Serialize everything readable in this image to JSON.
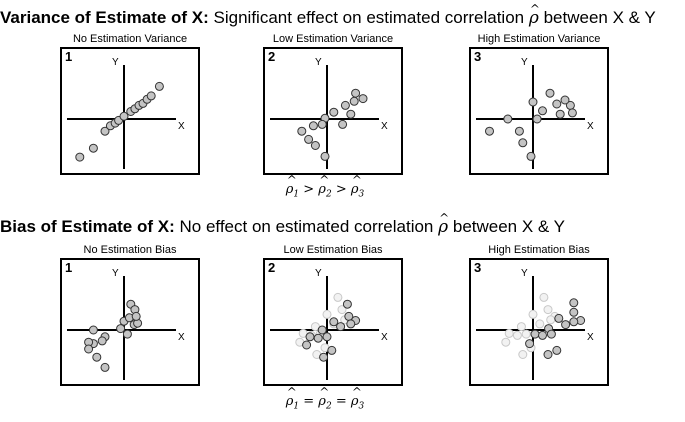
{
  "section_top": {
    "bold": "Variance of Estimate of X:",
    "text": "Significant effect on estimated correlation",
    "rho": "ρ",
    "tail": "between X & Y",
    "formula": [
      {
        "sym": "ρ",
        "sub": "1"
      },
      {
        "op": ">"
      },
      {
        "sym": "ρ",
        "sub": "2"
      },
      {
        "op": ">"
      },
      {
        "sym": "ρ",
        "sub": "3"
      }
    ],
    "panels": [
      {
        "title": "No Estimation Variance",
        "number": "1",
        "y_label": "Y",
        "x_label": "X",
        "points": [
          [
            -0.65,
            -0.56
          ],
          [
            -0.45,
            -0.43
          ],
          [
            -0.28,
            -0.18
          ],
          [
            -0.2,
            -0.1
          ],
          [
            -0.13,
            -0.06
          ],
          [
            -0.08,
            -0.02
          ],
          [
            0.0,
            0.04
          ],
          [
            0.1,
            0.11
          ],
          [
            0.16,
            0.15
          ],
          [
            0.22,
            0.2
          ],
          [
            0.28,
            0.23
          ],
          [
            0.34,
            0.29
          ],
          [
            0.4,
            0.34
          ],
          [
            0.52,
            0.48
          ]
        ],
        "faded": []
      },
      {
        "title": "Low Estimation Variance",
        "number": "2",
        "y_label": "Y",
        "x_label": "X",
        "points": [
          [
            -0.37,
            -0.18
          ],
          [
            -0.2,
            -0.1
          ],
          [
            -0.03,
            0.01
          ],
          [
            0.1,
            0.1
          ],
          [
            0.27,
            0.2
          ],
          [
            0.4,
            0.26
          ],
          [
            0.53,
            0.3
          ],
          [
            -0.27,
            -0.3
          ],
          [
            -0.07,
            -0.08
          ],
          [
            0.23,
            -0.08
          ],
          [
            0.35,
            0.07
          ],
          [
            0.42,
            0.38
          ],
          [
            -0.03,
            -0.55
          ],
          [
            -0.17,
            -0.39
          ]
        ],
        "faded": []
      },
      {
        "title": "High Estimation Variance",
        "number": "3",
        "y_label": "Y",
        "x_label": "X",
        "points": [
          [
            -0.64,
            -0.18
          ],
          [
            -0.37,
            0.0
          ],
          [
            -0.2,
            -0.18
          ],
          [
            0.0,
            0.25
          ],
          [
            0.06,
            0.0
          ],
          [
            0.25,
            0.38
          ],
          [
            0.4,
            0.07
          ],
          [
            0.35,
            0.22
          ],
          [
            0.55,
            0.2
          ],
          [
            -0.15,
            -0.35
          ],
          [
            0.14,
            0.12
          ],
          [
            0.58,
            0.09
          ],
          [
            -0.03,
            -0.55
          ],
          [
            0.47,
            0.28
          ]
        ],
        "faded": []
      }
    ]
  },
  "section_bottom": {
    "bold": "Bias of Estimate of X:",
    "text": "No effect on estimated correlation",
    "rho": "ρ",
    "tail": "between X & Y",
    "formula": [
      {
        "sym": "ρ",
        "sub": "1"
      },
      {
        "op": "="
      },
      {
        "sym": "ρ",
        "sub": "2"
      },
      {
        "op": "="
      },
      {
        "sym": "ρ",
        "sub": "3"
      }
    ],
    "panels": [
      {
        "title": "No Estimation Bias",
        "number": "1",
        "y_label": "Y",
        "x_label": "X",
        "points": [
          [
            -0.45,
            -0.2
          ],
          [
            -0.28,
            -0.1
          ],
          [
            -0.45,
            0.0
          ],
          [
            -0.52,
            -0.18
          ],
          [
            -0.32,
            -0.16
          ],
          [
            -0.52,
            -0.28
          ],
          [
            -0.4,
            -0.4
          ],
          [
            -0.28,
            -0.55
          ],
          [
            -0.05,
            0.02
          ],
          [
            0.0,
            0.13
          ],
          [
            0.05,
            -0.06
          ],
          [
            0.08,
            0.18
          ],
          [
            0.1,
            0.38
          ],
          [
            0.16,
            0.3
          ],
          [
            0.15,
            0.08
          ],
          [
            0.2,
            0.1
          ],
          [
            0.18,
            0.2
          ]
        ],
        "faded": []
      },
      {
        "title": "Low Estimation Bias",
        "number": "2",
        "y_label": "Y",
        "x_label": "X",
        "points": [
          [
            0.3,
            0.38
          ],
          [
            0.32,
            0.2
          ],
          [
            0.1,
            0.12
          ],
          [
            0.42,
            0.14
          ],
          [
            0.35,
            0.09
          ],
          [
            0.2,
            0.05
          ],
          [
            -0.07,
            0.0
          ],
          [
            -0.25,
            -0.1
          ],
          [
            -0.13,
            -0.12
          ],
          [
            -0.3,
            -0.22
          ],
          [
            0.0,
            -0.1
          ],
          [
            -0.05,
            -0.4
          ],
          [
            0.07,
            -0.3
          ]
        ],
        "faded": [
          [
            0.16,
            0.48
          ],
          [
            0.22,
            0.3
          ],
          [
            0.0,
            0.23
          ],
          [
            0.32,
            0.2
          ],
          [
            0.26,
            0.15
          ],
          [
            0.1,
            0.09
          ],
          [
            -0.17,
            0.05
          ],
          [
            -0.35,
            -0.05
          ],
          [
            -0.23,
            -0.08
          ],
          [
            -0.4,
            -0.18
          ],
          [
            -0.1,
            -0.06
          ],
          [
            -0.15,
            -0.36
          ],
          [
            -0.03,
            -0.26
          ]
        ]
      },
      {
        "title": "High Estimation Bias",
        "number": "3",
        "y_label": "Y",
        "x_label": "X",
        "points": [
          [
            0.6,
            0.4
          ],
          [
            0.6,
            0.26
          ],
          [
            0.38,
            0.17
          ],
          [
            0.7,
            0.14
          ],
          [
            0.6,
            0.12
          ],
          [
            0.48,
            0.08
          ],
          [
            0.23,
            0.02
          ],
          [
            0.03,
            -0.06
          ],
          [
            0.14,
            -0.08
          ],
          [
            -0.05,
            -0.2
          ],
          [
            0.27,
            -0.06
          ],
          [
            0.22,
            -0.36
          ],
          [
            0.35,
            -0.3
          ]
        ],
        "faded": [
          [
            0.16,
            0.48
          ],
          [
            0.22,
            0.3
          ],
          [
            0.0,
            0.23
          ],
          [
            0.32,
            0.2
          ],
          [
            0.26,
            0.15
          ],
          [
            0.1,
            0.09
          ],
          [
            -0.17,
            0.05
          ],
          [
            -0.35,
            -0.05
          ],
          [
            -0.23,
            -0.08
          ],
          [
            -0.4,
            -0.18
          ],
          [
            -0.1,
            -0.06
          ],
          [
            -0.15,
            -0.36
          ],
          [
            -0.03,
            -0.26
          ]
        ]
      }
    ]
  }
}
